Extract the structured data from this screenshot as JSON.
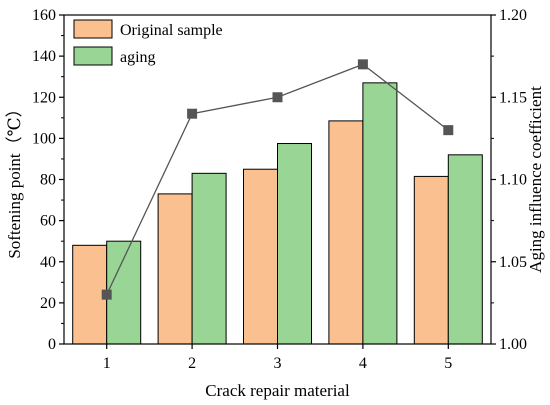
{
  "chart_data": {
    "type": "bar",
    "categories": [
      "1",
      "2",
      "3",
      "4",
      "5"
    ],
    "xlabel": "Crack repair material",
    "ylabel": "Softening point（℃）",
    "ylim": [
      0,
      160
    ],
    "yticks": [
      "0",
      "20",
      "40",
      "60",
      "80",
      "100",
      "120",
      "140",
      "160"
    ],
    "y2label": "Aging influence coefficient",
    "y2lim": [
      1.0,
      1.2
    ],
    "y2ticks": [
      "1.00",
      "1.05",
      "1.10",
      "1.15",
      "1.20"
    ],
    "legend_position": "top-left",
    "grid": false,
    "series": [
      {
        "name": "Original sample",
        "type": "bar",
        "axis": "left",
        "color": "#fac090",
        "values": [
          48,
          73,
          85,
          108.5,
          81.5
        ]
      },
      {
        "name": "aging",
        "type": "bar",
        "axis": "left",
        "color": "#99d594",
        "values": [
          50,
          83,
          97.5,
          127,
          92
        ]
      },
      {
        "type": "line",
        "axis": "right",
        "color": "#555555",
        "marker": "square",
        "values": [
          1.03,
          1.14,
          1.15,
          1.17,
          1.13
        ]
      }
    ]
  }
}
